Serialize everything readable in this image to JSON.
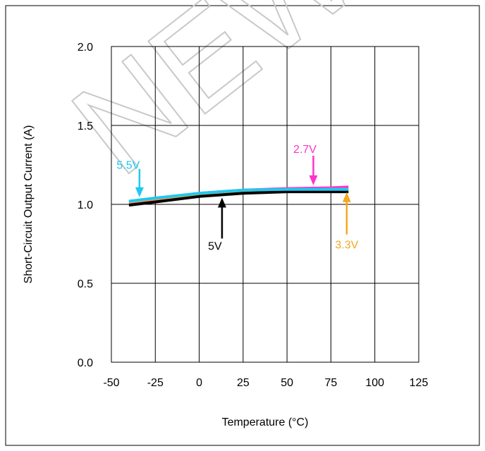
{
  "chart_data": {
    "type": "line",
    "title": "",
    "xlabel": "Temperature (°C)",
    "ylabel": "Short-Circuit Output Current (A)",
    "xlim": [
      -50,
      125
    ],
    "ylim": [
      0,
      2.0
    ],
    "xticks": [
      -50,
      -25,
      0,
      25,
      50,
      75,
      100,
      125
    ],
    "yticks": [
      0,
      0.5,
      1.0,
      1.5,
      2.0
    ],
    "xtick_labels": [
      "-50",
      "-25",
      "0",
      "25",
      "50",
      "75",
      "100",
      "125"
    ],
    "ytick_labels": [
      "0.0",
      "0.5",
      "1.0",
      "1.5",
      "2.0"
    ],
    "grid": true,
    "watermark": "NEW DESIGN",
    "series": [
      {
        "name": "2.7V",
        "color": "#ff33cc",
        "x": [
          -40,
          -25,
          0,
          25,
          50,
          75,
          85
        ],
        "y": [
          1.01,
          1.03,
          1.07,
          1.09,
          1.1,
          1.105,
          1.11
        ]
      },
      {
        "name": "3.3V",
        "color": "#f5a623",
        "x": [
          -40,
          -25,
          0,
          25,
          50,
          75,
          85
        ],
        "y": [
          1.015,
          1.035,
          1.065,
          1.085,
          1.09,
          1.095,
          1.095
        ]
      },
      {
        "name": "5V",
        "color": "#000000",
        "x": [
          -40,
          -25,
          0,
          25,
          50,
          75,
          85
        ],
        "y": [
          0.995,
          1.015,
          1.05,
          1.07,
          1.08,
          1.08,
          1.08
        ]
      },
      {
        "name": "5.5V",
        "color": "#1ec8f0",
        "x": [
          -40,
          -25,
          0,
          25,
          50,
          75,
          85
        ],
        "y": [
          1.02,
          1.04,
          1.07,
          1.09,
          1.095,
          1.095,
          1.095
        ]
      }
    ],
    "annotations": [
      {
        "text": "5.5V",
        "color": "#1ec8f0",
        "target_series": "5.5V",
        "target_x": -34
      },
      {
        "text": "2.7V",
        "color": "#ff33cc",
        "target_series": "2.7V",
        "target_x": 65
      },
      {
        "text": "5V",
        "color": "#000000",
        "target_series": "5V",
        "target_x": 13
      },
      {
        "text": "3.3V",
        "color": "#f5a623",
        "target_series": "3.3V",
        "target_x": 84
      }
    ]
  }
}
